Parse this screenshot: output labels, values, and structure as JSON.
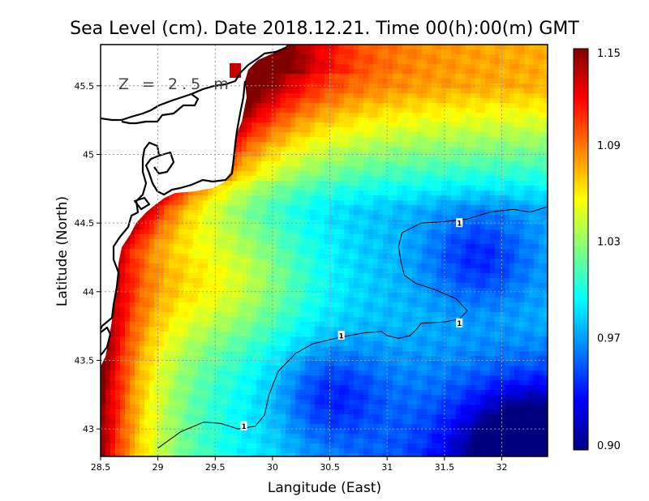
{
  "chart_data": {
    "type": "heatmap",
    "title": "Sea Level (cm). Date 2018.12.21. Time 00(h):00(m) GMT",
    "xlabel": "Langitude (East)",
    "ylabel": "Latitude (North)",
    "xlim": [
      28.5,
      32.4
    ],
    "ylim": [
      42.8,
      45.8
    ],
    "grid": true,
    "annotation": "Z = 2.5 m",
    "x_ticks": [
      28.5,
      29,
      29.5,
      30,
      30.5,
      31,
      31.5,
      32
    ],
    "x_tick_labels": [
      "28.5",
      "29",
      "29.5",
      "30",
      "30.5",
      "31",
      "31.5",
      "32"
    ],
    "y_ticks": [
      43,
      43.5,
      44,
      44.5,
      45,
      45.5
    ],
    "y_tick_labels": [
      "43",
      "43.5",
      "44",
      "44.5",
      "45",
      "45.5"
    ],
    "colorbar": {
      "min": 0.9,
      "max": 1.15,
      "ticks": [
        1.15,
        1.09,
        1.03,
        0.97,
        0.9
      ],
      "tick_labels": [
        "1.15",
        "1.09",
        "1.03",
        "0.97",
        "0.90"
      ],
      "colormap": [
        "#000080",
        "#0000ff",
        "#0080ff",
        "#00ffff",
        "#80ff80",
        "#ffff00",
        "#ff8000",
        "#ff0000",
        "#800000"
      ]
    },
    "contour": {
      "level": 1,
      "label": "1",
      "line": [
        [
          29.0,
          42.86
        ],
        [
          29.2,
          42.98
        ],
        [
          29.4,
          43.05
        ],
        [
          29.55,
          43.04
        ],
        [
          29.7,
          43.0
        ],
        [
          29.85,
          43.02
        ],
        [
          29.93,
          43.1
        ],
        [
          29.97,
          43.25
        ],
        [
          30.05,
          43.42
        ],
        [
          30.2,
          43.55
        ],
        [
          30.35,
          43.62
        ],
        [
          30.6,
          43.67
        ],
        [
          30.8,
          43.7
        ],
        [
          30.95,
          43.71
        ],
        [
          31.0,
          43.68
        ],
        [
          31.1,
          43.66
        ],
        [
          31.2,
          43.68
        ],
        [
          31.25,
          43.72
        ],
        [
          31.3,
          43.77
        ],
        [
          31.5,
          43.78
        ],
        [
          31.63,
          43.8
        ],
        [
          31.7,
          43.86
        ],
        [
          31.6,
          43.95
        ],
        [
          31.4,
          44.02
        ],
        [
          31.25,
          44.06
        ],
        [
          31.15,
          44.12
        ],
        [
          31.12,
          44.22
        ],
        [
          31.1,
          44.33
        ],
        [
          31.13,
          44.43
        ],
        [
          31.3,
          44.5
        ],
        [
          31.5,
          44.51
        ],
        [
          31.7,
          44.53
        ],
        [
          31.9,
          44.58
        ],
        [
          32.1,
          44.6
        ],
        [
          32.25,
          44.58
        ],
        [
          32.4,
          44.62
        ]
      ],
      "label_positions": [
        [
          29.75,
          43.02
        ],
        [
          30.6,
          43.68
        ],
        [
          31.63,
          43.77
        ],
        [
          31.63,
          44.5
        ]
      ],
      "label_along_line_index": [
        5,
        11,
        20,
        29
      ]
    },
    "field": {
      "description_of_pattern": "high near west/north coast, low in south-east basin",
      "coast_value": 1.15,
      "north_value": 1.13,
      "low_center_1": [
        31.8,
        44.25,
        0.965
      ],
      "low_center_2": [
        30.5,
        43.25,
        0.955
      ],
      "low_center_3": [
        32.2,
        42.9,
        0.91
      ]
    }
  }
}
